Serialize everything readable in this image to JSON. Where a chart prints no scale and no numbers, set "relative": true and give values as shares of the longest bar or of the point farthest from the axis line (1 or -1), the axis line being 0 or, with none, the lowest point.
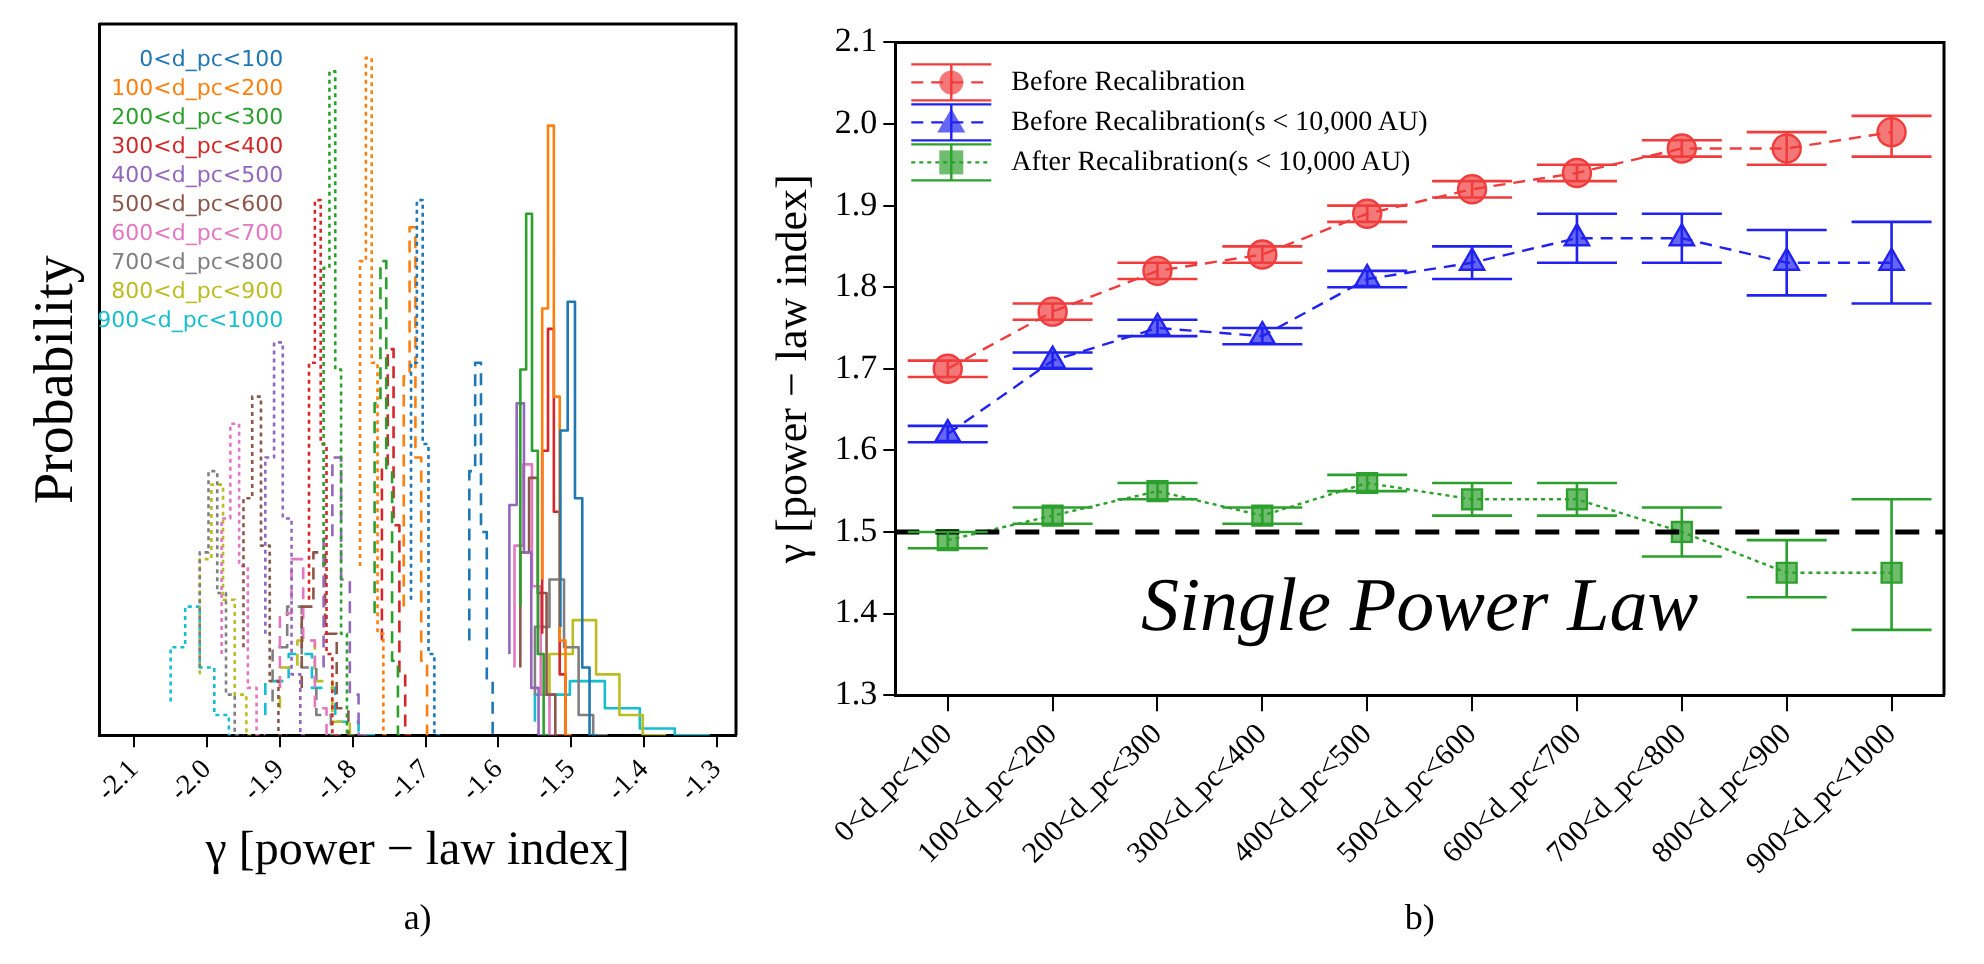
{
  "chart_data": [
    {
      "type": "step",
      "relative": true,
      "xlabel": "γ [power − law index]",
      "ylabel": "Probability",
      "xlim": [
        -2.148,
        -1.274
      ],
      "xticks": [
        -2.1,
        {
          "value": -2,
          "label": "-2.0"
        },
        -1.9,
        -1.8,
        -1.7,
        -1.6,
        -1.5,
        -1.4,
        -1.3
      ],
      "grid": false,
      "legend": "top left",
      "annotations": [
        "a)"
      ],
      "series": [
        {
          "name": "0<d_pc<100",
          "color": "#1f77b4",
          "line_style": "solid",
          "x": [
            -1.515,
            -1.505,
            -1.495,
            -1.485,
            -1.475,
            -1.465
          ],
          "values": [
            0.16,
            0.45,
            0.64,
            0.35,
            0.1,
            0
          ]
        },
        {
          "color": "#1f77b4",
          "line_style": "dashed",
          "x": [
            -1.64,
            -1.632,
            -1.624,
            -1.616,
            -1.608,
            -1.6
          ],
          "values": [
            0.14,
            0.39,
            0.55,
            0.3,
            0.08,
            0
          ]
        },
        {
          "color": "#1f77b4",
          "line_style": "dotted",
          "x": [
            -1.72,
            -1.712,
            -1.704,
            -1.696,
            -1.688,
            -1.68
          ],
          "values": [
            0.2,
            0.55,
            0.79,
            0.43,
            0.12,
            0
          ]
        },
        {
          "name": "100<d_pc<200",
          "color": "#ff7f0e",
          "line_style": "solid",
          "x": [
            -1.54,
            -1.532,
            -1.524,
            -1.516,
            -1.508,
            -1.5
          ],
          "values": [
            0.23,
            0.63,
            0.9,
            0.5,
            0.14,
            0
          ]
        },
        {
          "color": "#ff7f0e",
          "line_style": "dashed",
          "x": [
            -1.73,
            -1.722,
            -1.714,
            -1.706,
            -1.698,
            -1.69
          ],
          "values": [
            0.19,
            0.53,
            0.75,
            0.41,
            0.11,
            0
          ]
        },
        {
          "color": "#ff7f0e",
          "line_style": "dotted",
          "x": [
            -1.79,
            -1.782,
            -1.774,
            -1.766,
            -1.758,
            -1.75
          ],
          "values": [
            0.25,
            0.7,
            1,
            0.55,
            0.15,
            0
          ]
        },
        {
          "name": "200<d_pc<300",
          "color": "#2ca02c",
          "line_style": "solid",
          "x": [
            -1.57,
            -1.562,
            -1.554,
            -1.546,
            -1.538,
            -1.53
          ],
          "values": [
            0.19,
            0.54,
            0.77,
            0.42,
            0.12,
            0
          ]
        },
        {
          "color": "#2ca02c",
          "line_style": "dashed",
          "x": [
            -1.77,
            -1.762,
            -1.754,
            -1.746,
            -1.738,
            -1.73
          ],
          "values": [
            0.18,
            0.49,
            0.7,
            0.39,
            0.11,
            0
          ]
        },
        {
          "color": "#2ca02c",
          "line_style": "dotted",
          "x": [
            -1.84,
            -1.832,
            -1.824,
            -1.816,
            -1.808,
            -1.8
          ],
          "values": [
            0.25,
            0.69,
            0.98,
            0.54,
            0.15,
            0
          ]
        },
        {
          "name": "300<d_pc<400",
          "color": "#d62728",
          "line_style": "solid",
          "x": [
            -1.54,
            -1.532,
            -1.524,
            -1.516,
            -1.508,
            -1.5
          ],
          "values": [
            0.15,
            0.42,
            0.6,
            0.33,
            0.09,
            0
          ]
        },
        {
          "color": "#d62728",
          "line_style": "dashed",
          "x": [
            -1.76,
            -1.752,
            -1.744,
            -1.736,
            -1.728,
            -1.72
          ],
          "values": [
            0.14,
            0.4,
            0.57,
            0.31,
            0.09,
            0
          ]
        },
        {
          "color": "#d62728",
          "line_style": "dotted",
          "x": [
            -1.86,
            -1.852,
            -1.844,
            -1.836,
            -1.828,
            -1.82
          ],
          "values": [
            0.2,
            0.55,
            0.79,
            0.43,
            0.12,
            0
          ]
        },
        {
          "name": "400<d_pc<500",
          "color": "#9467bd",
          "line_style": "solid",
          "x": [
            -1.585,
            -1.575,
            -1.565,
            -1.555,
            -1.545,
            -1.535
          ],
          "values": [
            0.12,
            0.34,
            0.49,
            0.27,
            0.07,
            0
          ]
        },
        {
          "color": "#9467bd",
          "line_style": "dashed",
          "x": [
            -1.84,
            -1.828,
            -1.816,
            -1.804,
            -1.792,
            -1.78
          ],
          "values": [
            0.1,
            0.29,
            0.41,
            0.23,
            0.06,
            0
          ]
        },
        {
          "color": "#9467bd",
          "line_style": "dotted",
          "x": [
            -1.92,
            -1.908,
            -1.896,
            -1.884,
            -1.872,
            -1.86
          ],
          "values": [
            0.15,
            0.41,
            0.58,
            0.32,
            0.09,
            0
          ]
        },
        {
          "name": "500<d_pc<600",
          "color": "#8c564b",
          "line_style": "solid",
          "x": [
            -1.57,
            -1.558,
            -1.546,
            -1.534,
            -1.522,
            -1.51
          ],
          "values": [
            0.1,
            0.27,
            0.38,
            0.21,
            0.06,
            0
          ]
        },
        {
          "color": "#8c564b",
          "line_style": "dashed",
          "x": [
            -1.87,
            -1.854,
            -1.838,
            -1.822,
            -1.806,
            -1.79
          ],
          "values": [
            0.07,
            0.19,
            0.27,
            0.15,
            0.04,
            0
          ]
        },
        {
          "color": "#8c564b",
          "line_style": "dotted",
          "x": [
            -1.95,
            -1.938,
            -1.926,
            -1.914,
            -1.902,
            -1.89
          ],
          "values": [
            0.13,
            0.35,
            0.5,
            0.28,
            0.08,
            0
          ]
        },
        {
          "name": "600<d_pc<700",
          "color": "#e377c2",
          "line_style": "solid",
          "x": [
            -1.578,
            -1.566,
            -1.554,
            -1.542,
            -1.53,
            -1.518
          ],
          "values": [
            0.1,
            0.28,
            0.4,
            0.22,
            0.06,
            0
          ]
        },
        {
          "color": "#e377c2",
          "line_style": "dashed",
          "x": [
            -1.9,
            -1.884,
            -1.868,
            -1.852,
            -1.836,
            -1.82
          ],
          "values": [
            0.07,
            0.18,
            0.26,
            0.14,
            0.04,
            0
          ]
        },
        {
          "color": "#e377c2",
          "line_style": "dotted",
          "x": [
            -1.98,
            -1.968,
            -1.956,
            -1.944,
            -1.932,
            -1.92
          ],
          "values": [
            0.12,
            0.32,
            0.46,
            0.25,
            0.07,
            0
          ]
        },
        {
          "name": "700<d_pc<800",
          "color": "#7f7f7f",
          "line_style": "solid",
          "x": [
            -1.55,
            -1.53,
            -1.51,
            -1.49,
            -1.47,
            -1.45
          ],
          "values": [
            0.06,
            0.16,
            0.23,
            0.13,
            0.03,
            0
          ]
        },
        {
          "color": "#7f7f7f",
          "line_style": "dashed",
          "x": [
            -1.91,
            -1.89,
            -1.87,
            -1.85,
            -1.83,
            -1.81
          ],
          "values": [
            0.05,
            0.13,
            0.19,
            0.1,
            0.03,
            0
          ]
        },
        {
          "color": "#7f7f7f",
          "line_style": "dotted",
          "x": [
            -2.01,
            -1.998,
            -1.986,
            -1.974,
            -1.962,
            -1.95
          ],
          "values": [
            0.1,
            0.27,
            0.39,
            0.21,
            0.06,
            0
          ]
        },
        {
          "name": "800<d_pc<900",
          "color": "#bcbd22",
          "line_style": "solid",
          "x": [
            -1.53,
            -1.498,
            -1.466,
            -1.434,
            -1.402,
            -1.37
          ],
          "values": [
            0.04,
            0.12,
            0.17,
            0.09,
            0.03,
            0
          ]
        },
        {
          "color": "#bcbd22",
          "line_style": "dashed",
          "x": [
            -1.9,
            -1.876,
            -1.852,
            -1.828,
            -1.804,
            -1.78
          ],
          "values": [
            0.04,
            0.1,
            0.14,
            0.08,
            0.02,
            0
          ]
        },
        {
          "color": "#bcbd22",
          "line_style": "dotted",
          "x": [
            -2.01,
            -1.994,
            -1.978,
            -1.962,
            -1.946,
            -1.93
          ],
          "values": [
            0.09,
            0.26,
            0.37,
            0.2,
            0.06,
            0
          ]
        },
        {
          "name": "900<d_pc<1000",
          "color": "#17becf",
          "line_style": "solid",
          "x": [
            -1.55,
            -1.502,
            -1.454,
            -1.406,
            -1.358,
            -1.31
          ],
          "values": [
            0.02,
            0.06,
            0.08,
            0.04,
            0.01,
            0
          ]
        },
        {
          "color": "#17becf",
          "line_style": "dashed",
          "x": [
            -1.92,
            -1.888,
            -1.856,
            -1.824,
            -1.792,
            -1.76
          ],
          "values": [
            0.03,
            0.08,
            0.12,
            0.07,
            0.02,
            0
          ]
        },
        {
          "color": "#17becf",
          "line_style": "dotted",
          "x": [
            -2.05,
            -2.03,
            -2.01,
            -1.99,
            -1.97,
            -1.95
          ],
          "values": [
            0.05,
            0.13,
            0.19,
            0.1,
            0.03,
            0
          ]
        }
      ]
    },
    {
      "type": "line",
      "ylabel": "γ [power − law index]",
      "categories": [
        "0<d_pc<100",
        "100<d_pc<200",
        "200<d_pc<300",
        "300<d_pc<400",
        "400<d_pc<500",
        "500<d_pc<600",
        "600<d_pc<700",
        "700<d_pc<800",
        "800<d_pc<900",
        "900<d_pc<1000"
      ],
      "ylim": [
        1.3,
        2.1
      ],
      "yticks": [
        1.3,
        1.4,
        1.5,
        1.6,
        1.7,
        1.8,
        1.9,
        {
          "value": 2,
          "label": "2.0"
        },
        2.1
      ],
      "grid": false,
      "legend": "top left",
      "annotations": [
        "Single Power Law",
        "b)"
      ],
      "ref_lines": [
        {
          "axis": "y",
          "value": 1.5,
          "color": "#000000",
          "line_style": "dashed"
        }
      ],
      "series": [
        {
          "name": "Before Recalibration",
          "color": "#f03c3c",
          "marker": "circle",
          "line_style": "dashed",
          "values": [
            1.7,
            1.77,
            1.82,
            1.84,
            1.89,
            1.92,
            1.94,
            1.97,
            1.97,
            1.99
          ],
          "errors": [
            0.01,
            0.01,
            0.01,
            0.01,
            0.01,
            0.01,
            0.01,
            0.01,
            [
              1.95,
              1.99
            ],
            [
              1.96,
              2.01
            ]
          ]
        },
        {
          "name": "Before Recalibration(s < 10,000 AU)",
          "color": "#2222f0",
          "marker": "triangle",
          "line_style": "dashed",
          "values": [
            1.62,
            1.71,
            1.75,
            1.74,
            1.81,
            1.83,
            1.86,
            1.86,
            1.83,
            1.83
          ],
          "errors": [
            0.01,
            0.01,
            0.01,
            0.01,
            0.01,
            0.02,
            [
              1.83,
              1.89
            ],
            [
              1.83,
              1.89
            ],
            [
              1.79,
              1.87
            ],
            [
              1.78,
              1.88
            ]
          ]
        },
        {
          "name": "After Recalibration(s < 10,000 AU)",
          "color": "#2ca02c",
          "marker": "square",
          "line_style": "dotted",
          "values": [
            1.49,
            1.52,
            1.55,
            1.52,
            1.56,
            1.54,
            1.54,
            1.5,
            1.45,
            1.45
          ],
          "errors": [
            0.01,
            0.01,
            0.01,
            0.01,
            0.01,
            0.02,
            0.02,
            0.03,
            [
              1.42,
              1.49
            ],
            [
              1.38,
              1.54
            ]
          ]
        }
      ]
    }
  ]
}
